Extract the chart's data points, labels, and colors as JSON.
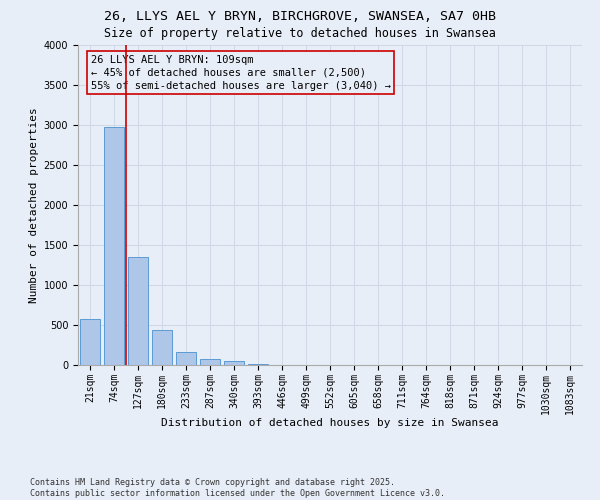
{
  "title_line1": "26, LLYS AEL Y BRYN, BIRCHGROVE, SWANSEA, SA7 0HB",
  "title_line2": "Size of property relative to detached houses in Swansea",
  "xlabel": "Distribution of detached houses by size in Swansea",
  "ylabel": "Number of detached properties",
  "bar_labels": [
    "21sqm",
    "74sqm",
    "127sqm",
    "180sqm",
    "233sqm",
    "287sqm",
    "340sqm",
    "393sqm",
    "446sqm",
    "499sqm",
    "552sqm",
    "605sqm",
    "658sqm",
    "711sqm",
    "764sqm",
    "818sqm",
    "871sqm",
    "924sqm",
    "977sqm",
    "1030sqm",
    "1083sqm"
  ],
  "bar_values": [
    580,
    2980,
    1350,
    440,
    160,
    80,
    50,
    12,
    6,
    4,
    2,
    1,
    1,
    1,
    1,
    0,
    0,
    0,
    0,
    0,
    0
  ],
  "bar_color": "#aec6e8",
  "bar_edge_color": "#5b9bd5",
  "grid_color": "#d0d8e8",
  "background_color": "#e8eef8",
  "vline_color": "#cc0000",
  "annotation_text": "26 LLYS AEL Y BRYN: 109sqm\n← 45% of detached houses are smaller (2,500)\n55% of semi-detached houses are larger (3,040) →",
  "ylim": [
    0,
    4000
  ],
  "yticks": [
    0,
    500,
    1000,
    1500,
    2000,
    2500,
    3000,
    3500,
    4000
  ],
  "footer_line1": "Contains HM Land Registry data © Crown copyright and database right 2025.",
  "footer_line2": "Contains public sector information licensed under the Open Government Licence v3.0.",
  "title_fontsize": 9.5,
  "subtitle_fontsize": 8.5,
  "xlabel_fontsize": 8,
  "ylabel_fontsize": 8,
  "tick_fontsize": 7,
  "annotation_fontsize": 7.5,
  "footer_fontsize": 6
}
